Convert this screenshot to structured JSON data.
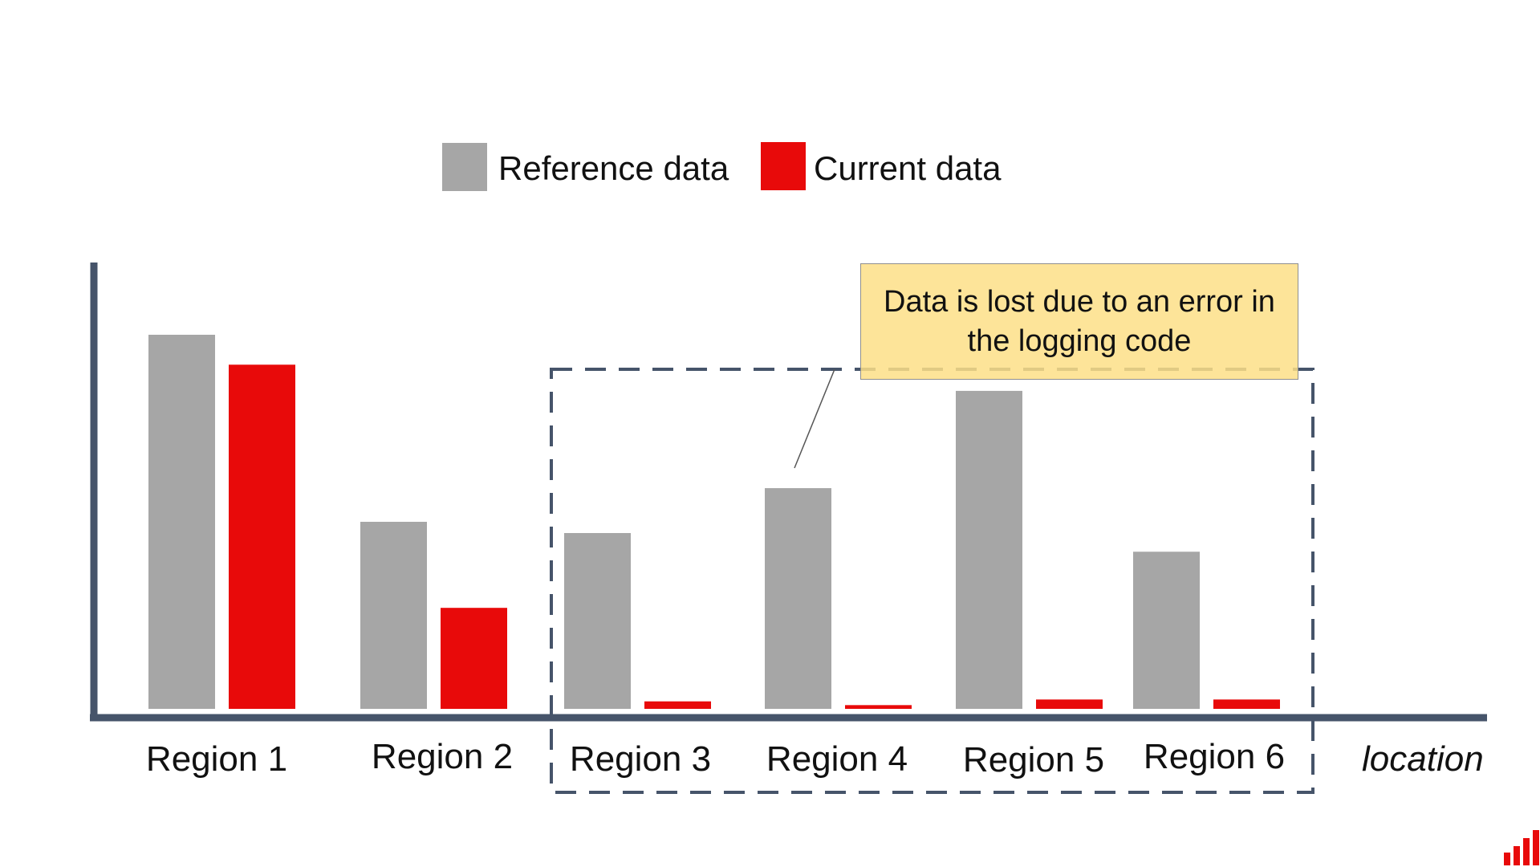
{
  "chart_data": {
    "type": "bar",
    "categories": [
      "Region 1",
      "Region 2",
      "Region 3",
      "Region 4",
      "Region 5",
      "Region 6"
    ],
    "series": [
      {
        "name": "Reference data",
        "color": "#a6a6a6",
        "values": [
          100,
          50,
          47,
          59,
          85,
          42
        ]
      },
      {
        "name": "Current data",
        "color": "#e80a0a",
        "values": [
          92,
          27,
          2,
          1,
          2.5,
          2.5
        ]
      }
    ],
    "xlabel": "location",
    "ylabel": "",
    "ylim": [
      0,
      100
    ],
    "grid": false,
    "legend": "top-center",
    "highlight": {
      "categories": [
        "Region 3",
        "Region 4",
        "Region 5",
        "Region 6"
      ],
      "style": "dashed-box"
    },
    "annotation": {
      "text": "Data is lost due to an error in the logging code",
      "target": "Region 4"
    }
  },
  "colors": {
    "axis": "#46546a",
    "highlight_box": "#46546a",
    "callout_fill": "#fddf87",
    "logo": "#e80a0a"
  },
  "icons": {
    "logo": "bar-chart-logo-icon"
  }
}
